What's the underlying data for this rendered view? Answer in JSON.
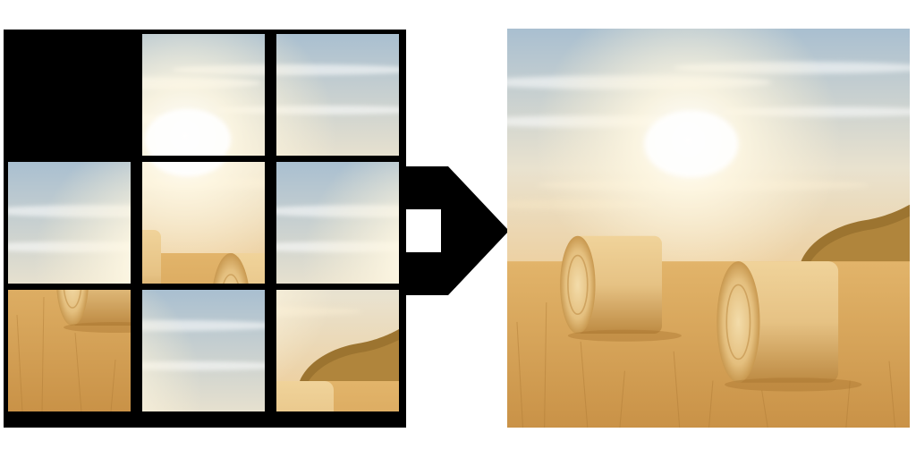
{
  "puzzle": {
    "grid_size": 3,
    "empty_tile": "r0c0",
    "tiles": [
      {
        "slot": "r0c0",
        "shows": "empty"
      },
      {
        "slot": "r0c1",
        "shows": "source-r0c1"
      },
      {
        "slot": "r0c2",
        "shows": "source-r0c2"
      },
      {
        "slot": "r1c0",
        "shows": "source-r0c0"
      },
      {
        "slot": "r1c1",
        "shows": "source-r1c1"
      },
      {
        "slot": "r1c2",
        "shows": "source-r0c0"
      },
      {
        "slot": "r2c0",
        "shows": "source-r2c0"
      },
      {
        "slot": "r2c1",
        "shows": "source-r0c2"
      },
      {
        "slot": "r2c2",
        "shows": "source-r1c2"
      }
    ]
  },
  "arrow": {
    "icon": "right-arrow-icon",
    "color": "#000000"
  },
  "solved_image": {
    "subject": "hay-bales-field-photo"
  },
  "colors": {
    "sky_top": "#a9bfd0",
    "sky_glow": "#fffbe9",
    "haze": "#eec98e",
    "field": "#d9a95a",
    "field_dark": "#b9843c",
    "bale": "#e8c88c",
    "board_bg": "#000000"
  }
}
